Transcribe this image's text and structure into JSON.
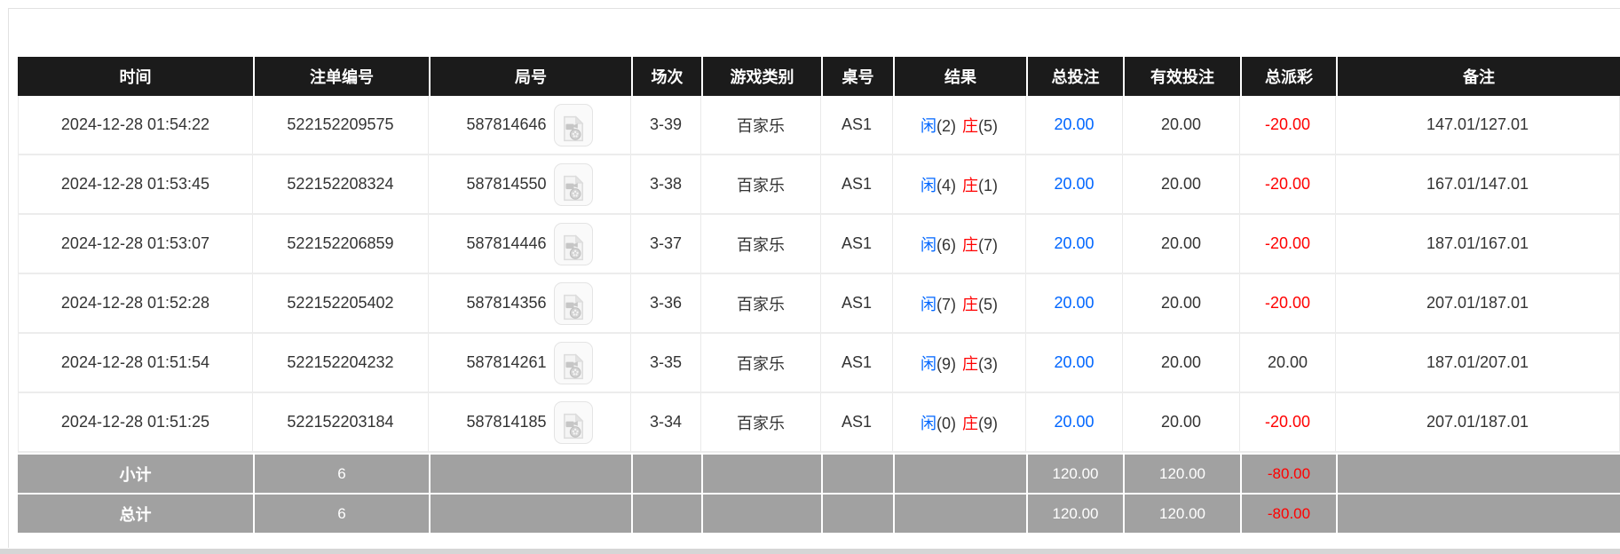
{
  "table": {
    "headers": [
      "时间",
      "注单编号",
      "局号",
      "场次",
      "游戏类别",
      "桌号",
      "结果",
      "总投注",
      "有效投注",
      "总派彩",
      "备注"
    ],
    "rows": [
      {
        "time": "2024-12-28 01:54:22",
        "bet_id": "522152209575",
        "round_id": "587814646",
        "session": "3-39",
        "game_type": "百家乐",
        "table_no": "AS1",
        "result": {
          "player_label": "闲",
          "player_score": "(2)",
          "banker_label": "庄",
          "banker_score": "(5)"
        },
        "total_bet": "20.00",
        "valid_bet": "20.00",
        "payout": "-20.00",
        "remark": "147.01/127.01"
      },
      {
        "time": "2024-12-28 01:53:45",
        "bet_id": "522152208324",
        "round_id": "587814550",
        "session": "3-38",
        "game_type": "百家乐",
        "table_no": "AS1",
        "result": {
          "player_label": "闲",
          "player_score": "(4)",
          "banker_label": "庄",
          "banker_score": "(1)"
        },
        "total_bet": "20.00",
        "valid_bet": "20.00",
        "payout": "-20.00",
        "remark": "167.01/147.01"
      },
      {
        "time": "2024-12-28 01:53:07",
        "bet_id": "522152206859",
        "round_id": "587814446",
        "session": "3-37",
        "game_type": "百家乐",
        "table_no": "AS1",
        "result": {
          "player_label": "闲",
          "player_score": "(6)",
          "banker_label": "庄",
          "banker_score": "(7)"
        },
        "total_bet": "20.00",
        "valid_bet": "20.00",
        "payout": "-20.00",
        "remark": "187.01/167.01"
      },
      {
        "time": "2024-12-28 01:52:28",
        "bet_id": "522152205402",
        "round_id": "587814356",
        "session": "3-36",
        "game_type": "百家乐",
        "table_no": "AS1",
        "result": {
          "player_label": "闲",
          "player_score": "(7)",
          "banker_label": "庄",
          "banker_score": "(5)"
        },
        "total_bet": "20.00",
        "valid_bet": "20.00",
        "payout": "-20.00",
        "remark": "207.01/187.01"
      },
      {
        "time": "2024-12-28 01:51:54",
        "bet_id": "522152204232",
        "round_id": "587814261",
        "session": "3-35",
        "game_type": "百家乐",
        "table_no": "AS1",
        "result": {
          "player_label": "闲",
          "player_score": "(9)",
          "banker_label": "庄",
          "banker_score": "(3)"
        },
        "total_bet": "20.00",
        "valid_bet": "20.00",
        "payout": "20.00",
        "remark": "187.01/207.01"
      },
      {
        "time": "2024-12-28 01:51:25",
        "bet_id": "522152203184",
        "round_id": "587814185",
        "session": "3-34",
        "game_type": "百家乐",
        "table_no": "AS1",
        "result": {
          "player_label": "闲",
          "player_score": "(0)",
          "banker_label": "庄",
          "banker_score": "(9)"
        },
        "total_bet": "20.00",
        "valid_bet": "20.00",
        "payout": "-20.00",
        "remark": "207.01/187.01"
      }
    ],
    "subtotal": {
      "label": "小计",
      "count": "6",
      "total_bet": "120.00",
      "valid_bet": "120.00",
      "payout": "-80.00",
      "remark": ""
    },
    "total": {
      "label": "总计",
      "count": "6",
      "total_bet": "120.00",
      "valid_bet": "120.00",
      "payout": "-80.00",
      "remark": ""
    }
  },
  "icons": {
    "video_replay": "video-replay-icon"
  },
  "colors": {
    "header_bg": "#1b1b1b",
    "footer_bg": "#a1a1a1",
    "player_blue": "#0066ff",
    "banker_red": "#ff0000",
    "payout_negative": "#ff0000",
    "body_text": "#333333"
  }
}
